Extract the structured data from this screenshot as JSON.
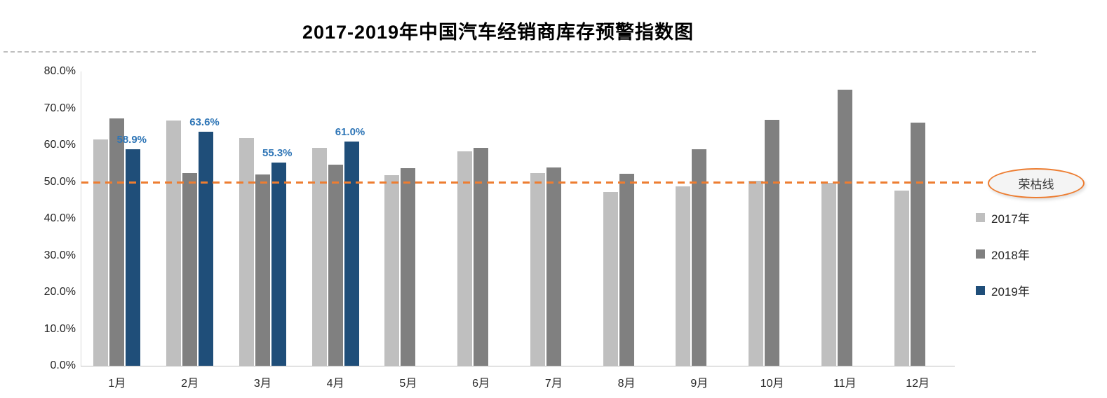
{
  "chart_data": {
    "type": "bar",
    "title": "2017-2019年中国汽车经销商库存预警指数图",
    "categories": [
      "1月",
      "2月",
      "3月",
      "4月",
      "5月",
      "6月",
      "7月",
      "8月",
      "9月",
      "10月",
      "11月",
      "12月"
    ],
    "series": [
      {
        "name": "2017年",
        "color": "#BFBFBF",
        "values": [
          61.5,
          66.6,
          61.9,
          59.2,
          51.8,
          58.2,
          52.4,
          47.2,
          48.7,
          50.2,
          49.7,
          47.7
        ]
      },
      {
        "name": "2018年",
        "color": "#808080",
        "values": [
          67.2,
          52.3,
          52.0,
          54.6,
          53.7,
          59.2,
          53.9,
          52.2,
          58.9,
          66.9,
          75.1,
          66.1
        ]
      },
      {
        "name": "2019年",
        "color": "#1F4E79",
        "label_color": "#2E75B6",
        "values": [
          58.9,
          63.6,
          55.3,
          61.0,
          null,
          null,
          null,
          null,
          null,
          null,
          null,
          null
        ],
        "data_labels": [
          "58.9%",
          "63.6%",
          "55.3%",
          "61.0%",
          "",
          "",
          "",
          "",
          "",
          "",
          "",
          ""
        ]
      }
    ],
    "ylim": [
      0,
      80
    ],
    "yticks": [
      "80.0%",
      "70.0%",
      "60.0%",
      "50.0%",
      "40.0%",
      "30.0%",
      "20.0%",
      "10.0%",
      "0.0%"
    ],
    "grid": false,
    "legend_position": "right",
    "reference_line": {
      "value": 50,
      "label": "荣枯线",
      "color": "#ED7D31",
      "style": "dashed"
    }
  }
}
